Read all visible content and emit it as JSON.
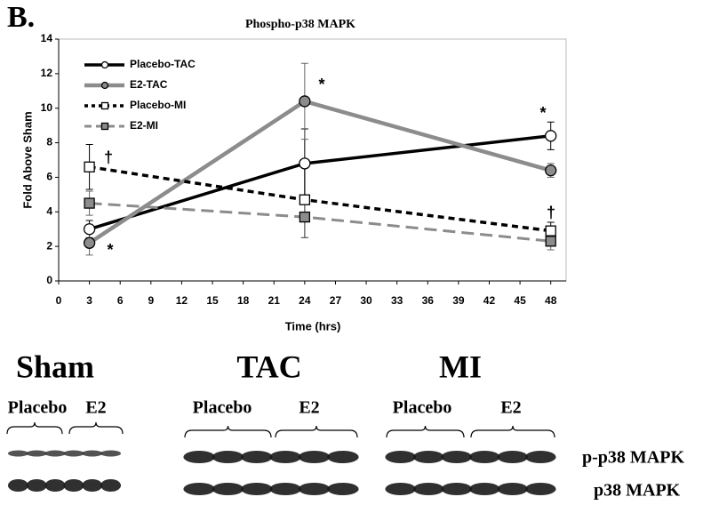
{
  "panel_label": "B.",
  "chart_data": {
    "type": "line",
    "title": "Phospho-p38 MAPK",
    "x_label": "Time (hrs)",
    "y_label": "Fold Above Sham",
    "x": [
      3,
      24,
      48
    ],
    "series": [
      {
        "name": "Placebo-TAC",
        "color": "#000000",
        "dash": false,
        "width": 3.5,
        "marker": "circle",
        "filled": false,
        "values": [
          3.0,
          6.8,
          8.4
        ],
        "errors": [
          0.5,
          2.0,
          0.8
        ]
      },
      {
        "name": "E2-TAC",
        "color": "#8c8c8c",
        "dash": false,
        "width": 4.5,
        "marker": "circle",
        "filled": true,
        "values": [
          2.2,
          10.4,
          6.4
        ],
        "errors": [
          0.7,
          2.2,
          0.4
        ]
      },
      {
        "name": "Placebo-MI",
        "color": "#000000",
        "dash": true,
        "width": 3.5,
        "marker": "square",
        "filled": false,
        "values": [
          6.6,
          4.7,
          2.9
        ],
        "errors": [
          1.3,
          2.2,
          0.5
        ]
      },
      {
        "name": "E2-MI",
        "color": "#8c8c8c",
        "dash": true,
        "width": 3,
        "marker": "square",
        "filled": true,
        "values": [
          4.5,
          3.7,
          2.3
        ],
        "errors": [
          0.7,
          1.2,
          0.5
        ]
      }
    ],
    "xlim": [
      0,
      49.5
    ],
    "ylim": [
      0,
      14
    ],
    "xticks": [
      0,
      3,
      6,
      9,
      12,
      15,
      18,
      21,
      24,
      27,
      30,
      33,
      36,
      39,
      42,
      45,
      48
    ],
    "yticks": [
      0,
      2,
      4,
      6,
      8,
      10,
      12,
      14
    ],
    "legend": "upper left",
    "annotations": [
      "*",
      "*",
      "*",
      "†",
      "†"
    ]
  },
  "blot": {
    "groups": [
      {
        "name": "Sham",
        "placebo": "Placebo",
        "e2": "E2"
      },
      {
        "name": "TAC",
        "placebo": "Placebo",
        "e2": "E2"
      },
      {
        "name": "MI",
        "placebo": "Placebo",
        "e2": "E2"
      }
    ],
    "rows": [
      "p-p38 MAPK",
      "p38 MAPK"
    ]
  }
}
